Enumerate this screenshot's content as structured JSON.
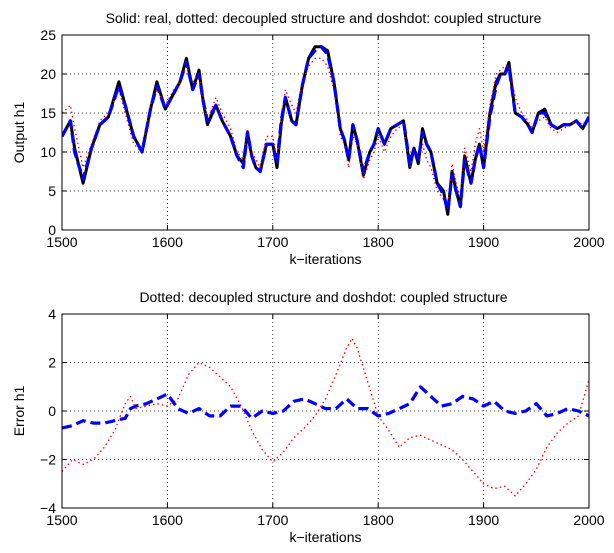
{
  "colors": {
    "real": "#000000",
    "decoupled": "#ff0000",
    "coupled": "#0000ff",
    "grid": "#000000"
  },
  "chart_data": [
    {
      "type": "line",
      "title": "Solid: real, dotted: decoupled structure and doshdot: coupled structure",
      "xlabel": "k−iterations",
      "ylabel": "Output h1",
      "xlim": [
        1500,
        2000
      ],
      "ylim": [
        0,
        25
      ],
      "xticks": [
        "1500",
        "1600",
        "1700",
        "1800",
        "1900",
        "2000"
      ],
      "yticks": [
        "0",
        "5",
        "10",
        "15",
        "20",
        "25"
      ],
      "grid": true,
      "x": [
        1500,
        1508,
        1512,
        1520,
        1528,
        1536,
        1544,
        1554,
        1560,
        1568,
        1576,
        1584,
        1590,
        1598,
        1606,
        1612,
        1618,
        1624,
        1630,
        1634,
        1638,
        1646,
        1652,
        1660,
        1666,
        1672,
        1676,
        1680,
        1684,
        1688,
        1694,
        1700,
        1704,
        1708,
        1712,
        1718,
        1722,
        1728,
        1734,
        1740,
        1746,
        1752,
        1758,
        1764,
        1768,
        1772,
        1776,
        1780,
        1786,
        1792,
        1796,
        1800,
        1806,
        1812,
        1818,
        1824,
        1830,
        1834,
        1838,
        1842,
        1846,
        1850,
        1856,
        1862,
        1866,
        1870,
        1874,
        1878,
        1882,
        1888,
        1892,
        1896,
        1900,
        1906,
        1912,
        1916,
        1920,
        1924,
        1930,
        1936,
        1942,
        1946,
        1952,
        1958,
        1964,
        1970,
        1976,
        1982,
        1988,
        1994,
        2000
      ],
      "series": [
        {
          "style": "solid",
          "values": [
            12,
            14,
            10.5,
            6,
            10.5,
            13.5,
            14.5,
            19,
            16,
            12,
            10,
            15.5,
            19,
            15.5,
            17.5,
            19,
            22,
            18,
            20.5,
            16.5,
            13.5,
            16,
            14,
            12,
            9.5,
            8.5,
            12.5,
            9.5,
            8,
            7.5,
            11,
            11,
            8,
            13.5,
            17,
            14,
            13.5,
            18.5,
            22,
            23.5,
            23.5,
            23,
            19,
            13,
            11.5,
            9,
            13.5,
            11.5,
            7,
            10,
            11,
            13,
            11,
            13,
            13.5,
            14,
            8,
            10.5,
            8.5,
            13,
            11,
            10,
            6,
            5,
            2,
            7.5,
            5,
            3,
            9.5,
            6,
            9,
            11,
            8,
            15,
            19,
            20,
            20,
            21.5,
            15,
            14.5,
            13.5,
            12.5,
            15,
            15.5,
            13.5,
            13,
            13.5,
            13.5,
            14,
            13,
            14.5
          ]
        },
        {
          "style": "dotted",
          "values": [
            15,
            16,
            13,
            8,
            11,
            14,
            15,
            18,
            15,
            11,
            10,
            16,
            18,
            16,
            18,
            19,
            21,
            19,
            20,
            17,
            14,
            17,
            15,
            13,
            10,
            9,
            13,
            10,
            9,
            8,
            12,
            12,
            9,
            14,
            18,
            16,
            15,
            19,
            21,
            22,
            22,
            21,
            18,
            12,
            11,
            8,
            12,
            11,
            6.5,
            9,
            10,
            12,
            10,
            12,
            13,
            13.5,
            8,
            10,
            9,
            11,
            9,
            8,
            5,
            4,
            3,
            8.5,
            6,
            4,
            10.5,
            7.5,
            11,
            13,
            10,
            16,
            20,
            20.5,
            21,
            21,
            17,
            15,
            14,
            13,
            14,
            14.5,
            13,
            12.5,
            13,
            13.5,
            14,
            13.5,
            14.5
          ]
        },
        {
          "style": "dashdot",
          "values": [
            12,
            14,
            10,
            6.5,
            10.5,
            13.5,
            14.5,
            18.5,
            16,
            12,
            10,
            15.5,
            18.5,
            15.5,
            17.5,
            19,
            21.5,
            18,
            20,
            16.5,
            14,
            16,
            14,
            12,
            9.5,
            8,
            12.5,
            9.5,
            8,
            7.5,
            11,
            11,
            8.5,
            14,
            17,
            14,
            13.5,
            18.5,
            22,
            23,
            23.5,
            22.5,
            19,
            13,
            11.5,
            9,
            13.5,
            11.5,
            7.5,
            10,
            11,
            13,
            11,
            13,
            13.5,
            14,
            8.5,
            10.5,
            9,
            12.5,
            11,
            10,
            6,
            4.5,
            2.5,
            7,
            5,
            3,
            9,
            6,
            9,
            11,
            8,
            14.5,
            18.5,
            20,
            20,
            21,
            15,
            14.5,
            13.5,
            12.5,
            15,
            15,
            13.5,
            13,
            13.5,
            13.5,
            14,
            13,
            14.5
          ]
        }
      ]
    },
    {
      "type": "line",
      "title": "Dotted: decoupled structure and doshdot: coupled structure",
      "xlabel": "k−iterations",
      "ylabel": "Error h1",
      "xlim": [
        1500,
        2000
      ],
      "ylim": [
        -4,
        4
      ],
      "xticks": [
        "1500",
        "1600",
        "1700",
        "1800",
        "1900",
        "2000"
      ],
      "yticks": [
        "−4",
        "−2",
        "0",
        "2",
        "4"
      ],
      "grid": true,
      "x": [
        1500,
        1510,
        1520,
        1530,
        1540,
        1550,
        1560,
        1565,
        1570,
        1580,
        1590,
        1600,
        1610,
        1620,
        1630,
        1640,
        1650,
        1660,
        1670,
        1680,
        1690,
        1700,
        1710,
        1720,
        1730,
        1740,
        1750,
        1760,
        1770,
        1775,
        1780,
        1790,
        1800,
        1810,
        1820,
        1830,
        1840,
        1850,
        1860,
        1870,
        1880,
        1890,
        1900,
        1910,
        1920,
        1930,
        1940,
        1950,
        1960,
        1970,
        1980,
        1990,
        2000
      ],
      "series": [
        {
          "style": "dotted",
          "values": [
            -2.5,
            -2.0,
            -2.2,
            -2.0,
            -1.5,
            -0.8,
            0.3,
            0.6,
            0.1,
            0.2,
            0.3,
            0.2,
            0.5,
            1.5,
            2.0,
            1.8,
            1.4,
            1.0,
            0.2,
            -0.8,
            -1.6,
            -2.1,
            -1.7,
            -1.1,
            -0.7,
            -0.2,
            0.5,
            1.5,
            2.6,
            3.0,
            2.6,
            1.2,
            -0.2,
            -0.8,
            -1.5,
            -1.1,
            -1.0,
            -1.2,
            -1.4,
            -1.6,
            -2.0,
            -2.5,
            -3.0,
            -3.2,
            -3.1,
            -3.5,
            -3.0,
            -2.4,
            -1.5,
            -0.9,
            -0.5,
            -0.2,
            1.3
          ]
        },
        {
          "style": "dashdot",
          "values": [
            -0.7,
            -0.6,
            -0.4,
            -0.5,
            -0.5,
            -0.4,
            -0.3,
            0.1,
            0.2,
            0.3,
            0.5,
            0.7,
            0.1,
            -0.1,
            0.1,
            -0.2,
            -0.2,
            0.2,
            0.2,
            -0.3,
            0.0,
            -0.1,
            0.0,
            0.4,
            0.5,
            0.3,
            0.1,
            0.1,
            0.5,
            0.3,
            0.1,
            0.1,
            -0.2,
            -0.1,
            0.1,
            0.3,
            1.0,
            0.6,
            0.2,
            0.3,
            0.6,
            0.5,
            0.2,
            0.4,
            0.0,
            -0.1,
            0.0,
            0.3,
            -0.2,
            -0.1,
            0.1,
            0.0,
            -0.2
          ]
        }
      ]
    }
  ]
}
